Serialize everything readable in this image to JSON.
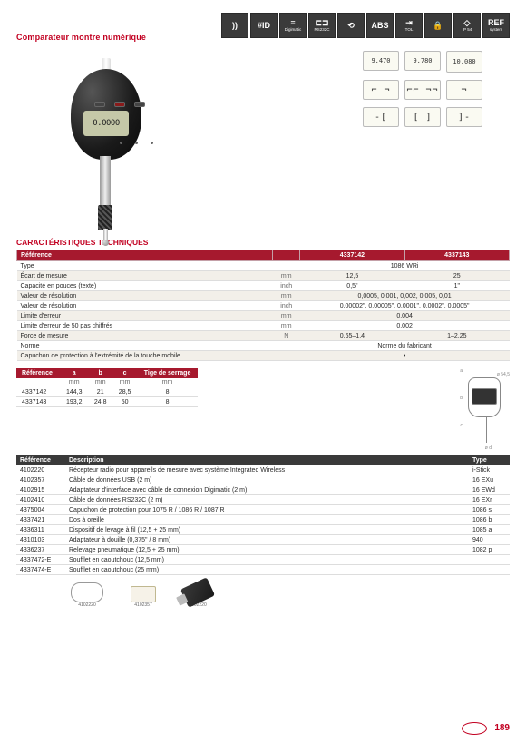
{
  "title": "Comparateur montre numérique",
  "gauge_reading": "0.0000",
  "badges": [
    {
      "icon": "))",
      "label": ""
    },
    {
      "icon": "#ID",
      "label": ""
    },
    {
      "icon": "≡",
      "label": "Digimatic"
    },
    {
      "icon": "⊏⊐",
      "label": "RS232C"
    },
    {
      "icon": "⟲",
      "label": ""
    },
    {
      "icon": "ABS",
      "label": ""
    },
    {
      "icon": "⇥",
      "label": "TOL"
    },
    {
      "icon": "🔒",
      "label": ""
    },
    {
      "icon": "◇",
      "label": "IP 54"
    },
    {
      "icon": "REF",
      "label": "system"
    }
  ],
  "display_readings": [
    "9.470",
    "9.780",
    "10.080"
  ],
  "section_specs": "CARACTÉRISTIQUES TECHNIQUES",
  "specs": {
    "header": [
      "Référence",
      "",
      "4337142",
      "4337143"
    ],
    "rows": [
      [
        "Type",
        "",
        "1086 WRi",
        ""
      ],
      [
        "Écart de mesure",
        "mm",
        "12,5",
        "25"
      ],
      [
        "Capacité en pouces (texte)",
        "inch",
        "0,5\"",
        "1\""
      ],
      [
        "Valeur de résolution",
        "mm",
        "0,0005, 0,001, 0,002, 0,005, 0,01",
        ""
      ],
      [
        "Valeur de résolution",
        "inch",
        "0,00002\", 0,00005\", 0,0001\", 0,0002\", 0,0005\"",
        ""
      ],
      [
        "Limite d'erreur",
        "mm",
        "0,004",
        ""
      ],
      [
        "Limite d'erreur de 50 pas chiffrés",
        "mm",
        "0,002",
        ""
      ],
      [
        "Force de mesure",
        "N",
        "0,65–1,4",
        "1–2,25"
      ],
      [
        "Norme",
        "",
        "Norme du fabricant",
        ""
      ],
      [
        "Capuchon de protection à l'extrémité de la touche mobile",
        "",
        "•",
        ""
      ]
    ]
  },
  "dims": {
    "header": [
      "Référence",
      "a",
      "b",
      "c",
      "Tige de serrage"
    ],
    "units": [
      "",
      "mm",
      "mm",
      "mm",
      "mm"
    ],
    "rows": [
      [
        "4337142",
        "144,3",
        "21",
        "28,5",
        "8"
      ],
      [
        "4337143",
        "193,2",
        "24,8",
        "50",
        "8"
      ]
    ]
  },
  "accessories": {
    "header": [
      "Référence",
      "Description",
      "Type"
    ],
    "rows": [
      [
        "4102220",
        "Récepteur radio pour appareils de mesure avec système Integrated Wireless",
        "i-Stick"
      ],
      [
        "4102357",
        "Câble de données USB (2 m)",
        "16 EXu"
      ],
      [
        "4102915",
        "Adaptateur d'interface avec câble de connexion Digimatic (2 m)",
        "16 EWd"
      ],
      [
        "4102410",
        "Câble de données RS232C (2 m)",
        "16 EXr"
      ],
      [
        "4375004",
        "Capuchon de protection pour 1075 R / 1086 R / 1087 R",
        "1086 s"
      ],
      [
        "4337421",
        "Dos à oreille",
        "1086 b"
      ],
      [
        "4336311",
        "Dispositif de levage à fil (12,5 + 25 mm)",
        "1085 a"
      ],
      [
        "4310103",
        "Adaptateur à douille (0,375\" / 8 mm)",
        "940"
      ],
      [
        "4336237",
        "Relevage pneumatique (12,5 + 25 mm)",
        "1082 p"
      ],
      [
        "4337472-E",
        "Soufflet en caoutchouc (12,5 mm)",
        ""
      ],
      [
        "4337474-E",
        "Soufflet en caoutchouc (25 mm)",
        ""
      ]
    ]
  },
  "acc_img_labels": [
    "4102220",
    "4102357",
    "4102220"
  ],
  "page_number": "189",
  "footer_left_bar": "|",
  "draw_labels": {
    "a": "a",
    "b": "b",
    "c": "c",
    "d": "ø d",
    "e": "ø 54,5"
  }
}
